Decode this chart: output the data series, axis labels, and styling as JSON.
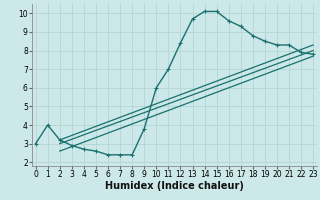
{
  "xlabel": "Humidex (Indice chaleur)",
  "bg_color": "#cce8e8",
  "grid_color": "#b8d8d8",
  "line_color": "#1a7070",
  "curve_x": [
    0,
    1,
    2,
    3,
    4,
    5,
    6,
    7,
    8,
    9,
    10,
    11,
    12,
    13,
    14,
    15,
    16,
    17,
    18,
    19,
    20,
    21,
    22,
    23
  ],
  "curve_y": [
    3.0,
    4.0,
    3.2,
    2.9,
    2.7,
    2.6,
    2.4,
    2.4,
    2.4,
    3.8,
    6.0,
    7.0,
    8.4,
    9.7,
    10.1,
    10.1,
    9.6,
    9.3,
    8.8,
    8.5,
    8.3,
    8.3,
    7.9,
    7.8
  ],
  "line1_x": [
    2,
    23
  ],
  "line1_y": [
    3.2,
    8.3
  ],
  "line2_x": [
    2,
    23
  ],
  "line2_y": [
    3.0,
    8.0
  ],
  "line3_x": [
    2,
    23
  ],
  "line3_y": [
    2.6,
    7.7
  ],
  "xlim": [
    -0.3,
    23.3
  ],
  "ylim": [
    1.8,
    10.5
  ],
  "xticks": [
    0,
    1,
    2,
    3,
    4,
    5,
    6,
    7,
    8,
    9,
    10,
    11,
    12,
    13,
    14,
    15,
    16,
    17,
    18,
    19,
    20,
    21,
    22,
    23
  ],
  "yticks": [
    2,
    3,
    4,
    5,
    6,
    7,
    8,
    9,
    10
  ],
  "xlabel_fontsize": 7.0,
  "tick_fontsize": 5.5
}
